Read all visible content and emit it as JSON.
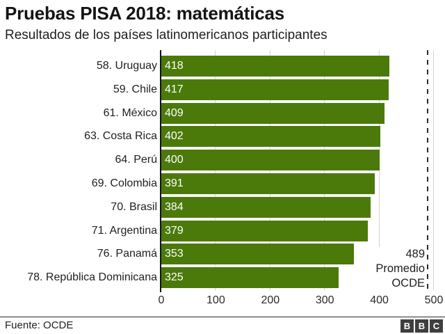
{
  "header": {
    "title": "Pruebas PISA 2018: matemáticas",
    "subtitle": "Resultados de los países latinomericanos participantes"
  },
  "chart_data": {
    "type": "bar",
    "orientation": "horizontal",
    "categories": [
      "58. Uruguay",
      "59. Chile",
      "61. México",
      "63. Costa Rica",
      "64. Perú",
      "69. Colombia",
      "70. Brasil",
      "71. Argentina",
      "76. Panamá",
      "78. República Dominicana"
    ],
    "values": [
      418,
      417,
      409,
      402,
      400,
      391,
      384,
      379,
      353,
      325
    ],
    "value_labels_shown": true,
    "xlim": [
      0,
      500
    ],
    "xticks": [
      0,
      100,
      200,
      300,
      400,
      500
    ],
    "grid": true,
    "bar_color": "#4b7a0b",
    "value_label_color": "#ffffff",
    "reference_line": {
      "value": 489,
      "label_lines": [
        "489",
        "Promedio",
        "OCDE"
      ],
      "style": "dashed"
    }
  },
  "footer": {
    "source": "Fuente: OCDE",
    "logo_letters": [
      "B",
      "B",
      "C"
    ]
  }
}
